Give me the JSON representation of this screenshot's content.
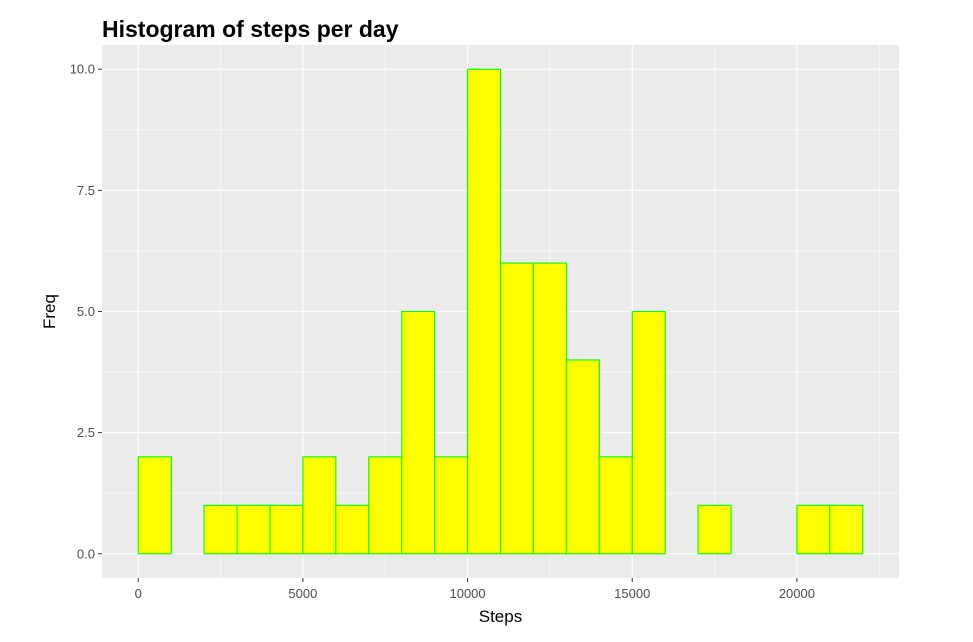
{
  "chart_data": {
    "type": "bar",
    "subtype": "histogram",
    "title": "Histogram of steps per day",
    "xlabel": "Steps",
    "ylabel": "Freq",
    "bin_width": 1000,
    "bins": [
      {
        "start": 0,
        "end": 1000,
        "count": 2
      },
      {
        "start": 1000,
        "end": 2000,
        "count": 0
      },
      {
        "start": 2000,
        "end": 3000,
        "count": 1
      },
      {
        "start": 3000,
        "end": 4000,
        "count": 1
      },
      {
        "start": 4000,
        "end": 5000,
        "count": 1
      },
      {
        "start": 5000,
        "end": 6000,
        "count": 2
      },
      {
        "start": 6000,
        "end": 7000,
        "count": 1
      },
      {
        "start": 7000,
        "end": 8000,
        "count": 2
      },
      {
        "start": 8000,
        "end": 9000,
        "count": 5
      },
      {
        "start": 9000,
        "end": 10000,
        "count": 2
      },
      {
        "start": 10000,
        "end": 11000,
        "count": 10
      },
      {
        "start": 11000,
        "end": 12000,
        "count": 6
      },
      {
        "start": 12000,
        "end": 13000,
        "count": 6
      },
      {
        "start": 13000,
        "end": 14000,
        "count": 4
      },
      {
        "start": 14000,
        "end": 15000,
        "count": 2
      },
      {
        "start": 15000,
        "end": 16000,
        "count": 5
      },
      {
        "start": 16000,
        "end": 17000,
        "count": 0
      },
      {
        "start": 17000,
        "end": 18000,
        "count": 1
      },
      {
        "start": 18000,
        "end": 19000,
        "count": 0
      },
      {
        "start": 19000,
        "end": 20000,
        "count": 0
      },
      {
        "start": 20000,
        "end": 21000,
        "count": 1
      },
      {
        "start": 21000,
        "end": 22000,
        "count": 1
      }
    ],
    "x_ticks": [
      {
        "value": 0,
        "label": "0"
      },
      {
        "value": 5000,
        "label": "5000"
      },
      {
        "value": 10000,
        "label": "10000"
      },
      {
        "value": 15000,
        "label": "15000"
      },
      {
        "value": 20000,
        "label": "20000"
      }
    ],
    "y_ticks": [
      {
        "value": 0,
        "label": "0.0"
      },
      {
        "value": 2.5,
        "label": "2.5"
      },
      {
        "value": 5,
        "label": "5.0"
      },
      {
        "value": 7.5,
        "label": "7.5"
      },
      {
        "value": 10,
        "label": "10.0"
      }
    ],
    "xlim": [
      -1100,
      23100
    ],
    "ylim": [
      -0.5,
      10.5
    ],
    "grid": true,
    "legend": "none",
    "colors": {
      "bar_fill": "#FFFF00",
      "bar_outline": "#00FF00",
      "panel_background": "#EBEBEB",
      "grid_line": "#FFFFFF",
      "tick_text": "#4D4D4D",
      "tick_mark": "#333333"
    }
  }
}
